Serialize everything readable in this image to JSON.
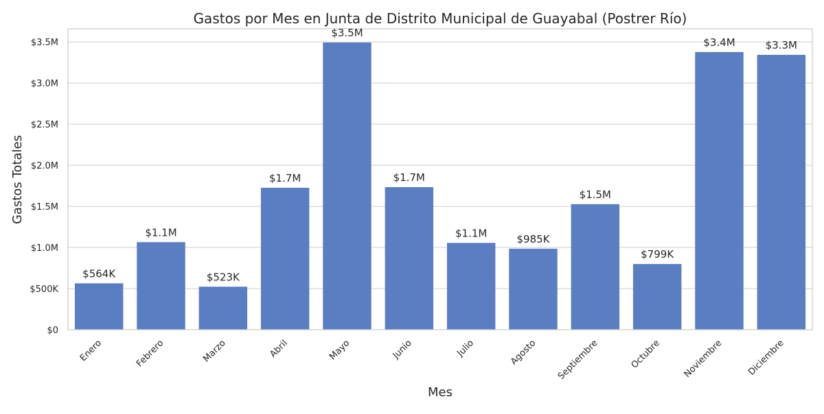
{
  "chart_data": {
    "type": "bar",
    "title": "Gastos por Mes en Junta de Distrito Municipal de Guayabal (Postrer Río)",
    "xlabel": "Mes",
    "ylabel": "Gastos Totales",
    "categories": [
      "Enero",
      "Febrero",
      "Marzo",
      "Abril",
      "Mayo",
      "Junio",
      "Julio",
      "Agosto",
      "Septiembre",
      "Octubre",
      "Noviembre",
      "Diciembre"
    ],
    "values": [
      564000,
      1065000,
      523000,
      1726000,
      3493000,
      1734000,
      1056000,
      985000,
      1527000,
      799000,
      3377000,
      3343000
    ],
    "value_labels": [
      "$564K",
      "$1.1M",
      "$523K",
      "$1.7M",
      "$3.5M",
      "$1.7M",
      "$1.1M",
      "$985K",
      "$1.5M",
      "$799K",
      "$3.4M",
      "$3.3M"
    ],
    "yticks": [
      0,
      500000,
      1000000,
      1500000,
      2000000,
      2500000,
      3000000,
      3500000
    ],
    "ytick_labels": [
      "$0",
      "$500K",
      "$1.0M",
      "$1.5M",
      "$2.0M",
      "$2.5M",
      "$3.0M",
      "$3.5M"
    ],
    "ylim": [
      0,
      3660000
    ],
    "grid": true,
    "bar_color": "#5b7ec2"
  }
}
